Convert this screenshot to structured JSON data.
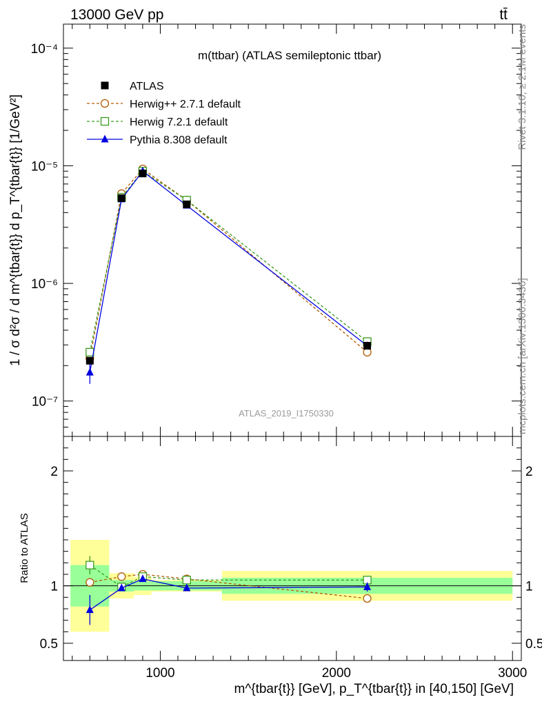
{
  "header": {
    "left": "13000 GeV pp",
    "right": "tt̄"
  },
  "side_labels": {
    "rivet": "Rivet 3.1.10, ≥ 2.1M events",
    "mcplots": "mcplots.cern.ch [arXiv:1306.3436]"
  },
  "chart_data": {
    "type": "line",
    "title": "m(ttbar) (ATLAS semileptonic ttbar)",
    "watermark": "ATLAS_2019_I1750330",
    "xlabel": "m^{tbar{t}} [GeV], p_T^{tbar{t}} in [40,150] [GeV]",
    "ylabel": "1 / σ d²σ / d m^{tbar{t}} d p_T^{tbar{t}} [1/GeV²]",
    "ratio_ylabel": "Ratio to ATLAS",
    "xlim": [
      450,
      3050
    ],
    "ylim": [
      5e-08,
      0.00016
    ],
    "ratio_ylim": [
      0.35,
      2.3
    ],
    "y_scale": "log",
    "x_ticks": [
      1000,
      2000,
      3000
    ],
    "y_ticks": [
      {
        "value": 1e-07,
        "label": "10⁻⁷"
      },
      {
        "value": 1e-06,
        "label": "10⁻⁶"
      },
      {
        "value": 1e-05,
        "label": "10⁻⁵"
      },
      {
        "value": 0.0001,
        "label": "10⁻⁴"
      }
    ],
    "ratio_ticks": [
      {
        "value": 0.5,
        "label": "0.5"
      },
      {
        "value": 1,
        "label": "1"
      },
      {
        "value": 2,
        "label": "2"
      }
    ],
    "bin_edges": [
      490,
      710,
      850,
      950,
      1350,
      3000
    ],
    "x": [
      600,
      780,
      900,
      1150,
      2175
    ],
    "legend_position": "top-left",
    "series": [
      {
        "name": "ATLAS",
        "color": "#000000",
        "marker": "filled-square",
        "values": [
          2.2e-07,
          5.3e-06,
          8.6e-06,
          4.7e-06,
          2.95e-07
        ],
        "ratio_band_green": [
          [
            0.82,
            1.18
          ],
          [
            0.95,
            1.05
          ],
          [
            0.96,
            1.04
          ],
          [
            0.96,
            1.04
          ],
          [
            0.93,
            1.07
          ]
        ],
        "ratio_band_yellow": [
          [
            0.6,
            1.4
          ],
          [
            0.89,
            1.11
          ],
          [
            0.92,
            1.08
          ],
          [
            0.95,
            1.05
          ],
          [
            0.87,
            1.13
          ]
        ]
      },
      {
        "name": "Herwig++ 2.7.1 default",
        "color": "#b35900",
        "marker": "open-circle",
        "line": "dashed",
        "values": [
          2.3e-07,
          5.8e-06,
          9.4e-06,
          5.1e-06,
          2.6e-07
        ],
        "ratio": [
          1.03,
          1.08,
          1.1,
          1.06,
          0.89
        ],
        "ratio_err": [
          0.0,
          0.02,
          0.02,
          0.01,
          0.03
        ]
      },
      {
        "name": "Herwig 7.2.1 default",
        "color": "#3a9a1e",
        "marker": "open-square",
        "line": "dashed",
        "values": [
          2.6e-07,
          5.4e-06,
          9e-06,
          5.1e-06,
          3.2e-07
        ],
        "ratio": [
          1.18,
          0.99,
          1.08,
          1.05,
          1.05
        ],
        "ratio_err": [
          0.08,
          0.02,
          0.02,
          0.01,
          0.03
        ]
      },
      {
        "name": "Pythia 8.308 default",
        "color": "#0000e0",
        "marker": "filled-triangle",
        "line": "solid",
        "values": [
          1.75e-07,
          5.2e-06,
          9e-06,
          4.6e-06,
          2.95e-07
        ],
        "y_err": [
          3.5e-08,
          2.5e-07,
          3e-07,
          1e-07,
          1.5e-08
        ],
        "ratio": [
          0.79,
          0.98,
          1.06,
          0.98,
          0.99
        ],
        "ratio_err": [
          0.13,
          0.02,
          0.02,
          0.01,
          0.04
        ]
      }
    ]
  }
}
